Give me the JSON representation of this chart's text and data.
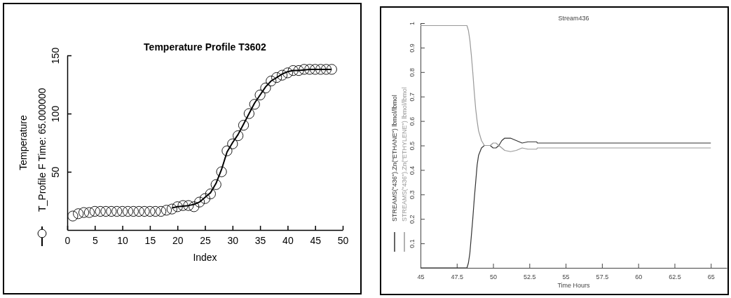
{
  "chart_data": [
    {
      "type": "scatter",
      "title": "Temperature Profile T3602",
      "xlabel": "Index",
      "ylabel": "Temperature",
      "xlim": [
        0,
        50
      ],
      "ylim": [
        0,
        150
      ],
      "xticks": [
        0,
        5,
        10,
        15,
        20,
        25,
        30,
        35,
        40,
        45,
        50
      ],
      "yticks": [
        50,
        100,
        150
      ],
      "legend": "left",
      "grid": false,
      "series": [
        {
          "name": "T_Profile F Time: 65.000000",
          "marker": "circle",
          "color": "#000000",
          "x": [
            1,
            2,
            3,
            4,
            5,
            6,
            7,
            8,
            9,
            10,
            11,
            12,
            13,
            14,
            15,
            16,
            17,
            18,
            19,
            20,
            21,
            22,
            23,
            24,
            25,
            26,
            27,
            28,
            29,
            30,
            31,
            32,
            33,
            34,
            35,
            36,
            37,
            38,
            39,
            40,
            41,
            42,
            43,
            44,
            45,
            46,
            47,
            48
          ],
          "values": [
            12,
            14,
            15,
            15,
            16,
            16,
            16,
            16,
            16,
            16,
            16,
            16,
            16,
            16,
            16,
            16,
            16,
            17,
            18,
            20,
            21,
            21,
            20,
            24,
            27,
            31,
            39,
            50,
            68,
            74,
            81,
            90,
            100,
            108,
            116,
            122,
            128,
            131,
            133,
            135,
            137,
            137,
            138,
            138,
            138,
            138,
            138,
            138
          ]
        },
        {
          "type": "line",
          "color": "#000000",
          "x": [
            19,
            20,
            21,
            22,
            23,
            24,
            25,
            26,
            27,
            28,
            29,
            30,
            31,
            32,
            33,
            34,
            35,
            36,
            37,
            38,
            39,
            40,
            41,
            42,
            43,
            44,
            45,
            46,
            47,
            48
          ],
          "values": [
            19,
            20,
            20.5,
            21,
            22,
            24,
            28,
            32,
            40,
            52,
            67,
            75,
            82,
            91,
            100,
            109,
            116,
            123,
            128,
            131,
            134,
            136,
            137,
            137,
            137.5,
            138,
            138,
            138,
            138,
            138
          ]
        }
      ]
    },
    {
      "type": "line",
      "title": "Stream436",
      "xlabel": "Time Hours",
      "xlim": [
        45,
        66.1
      ],
      "ylim": [
        0,
        1
      ],
      "xticks": [
        45,
        47.5,
        50,
        52.5,
        55,
        57.5,
        60,
        62.5,
        65
      ],
      "yticks": [
        {
          "value": 0,
          "label": null
        },
        0.1,
        0.2,
        0.3,
        0.4,
        0.5,
        0.6,
        0.7,
        0.8,
        0.9,
        1
      ],
      "legend": "left",
      "grid": false,
      "series": [
        {
          "name": "STREAMS(\"436\").Zn(\"ETHANE\") lbmol/lbmol",
          "color": "#333333",
          "x": [
            45,
            48.2,
            48.3,
            48.4,
            48.5,
            48.6,
            48.7,
            48.8,
            48.9,
            49.0,
            49.2,
            49.4,
            49.6,
            49.8,
            50.0,
            50.2,
            50.4,
            50.6,
            50.8,
            51.2,
            51.6,
            52.0,
            52.4,
            53.0,
            53.05,
            65
          ],
          "values": [
            0,
            0,
            0.02,
            0.06,
            0.13,
            0.2,
            0.28,
            0.35,
            0.42,
            0.46,
            0.49,
            0.5,
            0.5,
            0.5,
            0.49,
            0.49,
            0.5,
            0.52,
            0.53,
            0.53,
            0.52,
            0.51,
            0.515,
            0.515,
            0.51,
            0.51
          ]
        },
        {
          "name": "STREAMS(\"436\").Zn(\"ETHYLENE\") lbmol/lbmol",
          "color": "#999999",
          "x": [
            45,
            48.2,
            48.3,
            48.4,
            48.5,
            48.6,
            48.7,
            48.8,
            48.9,
            49.0,
            49.2,
            49.4,
            49.6,
            49.8,
            50.0,
            50.2,
            50.4,
            50.6,
            50.8,
            51.2,
            51.6,
            52.0,
            52.4,
            53.0,
            53.05,
            65
          ],
          "values": [
            0.99,
            0.99,
            0.97,
            0.93,
            0.87,
            0.8,
            0.72,
            0.65,
            0.6,
            0.56,
            0.52,
            0.5,
            0.5,
            0.5,
            0.51,
            0.51,
            0.5,
            0.49,
            0.48,
            0.475,
            0.48,
            0.49,
            0.485,
            0.485,
            0.49,
            0.49
          ]
        }
      ]
    }
  ]
}
